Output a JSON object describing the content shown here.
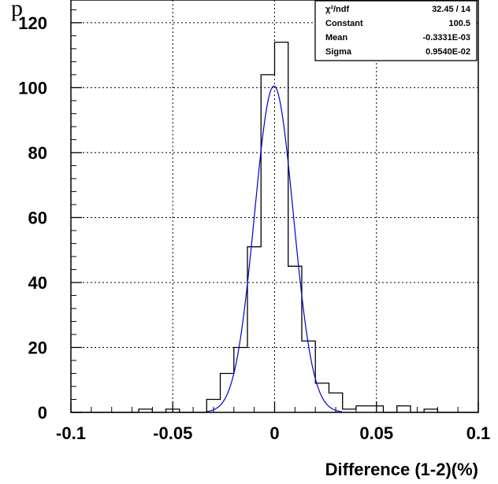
{
  "page_title_glyph": "p",
  "chart_data": {
    "type": "bar",
    "xlabel": "Difference (1-2)(%)",
    "ylabel": "",
    "xlim": [
      -0.1,
      0.1
    ],
    "ylim": [
      0,
      127
    ],
    "grid": true,
    "x_ticks": [
      {
        "value": -0.1,
        "label": "-0.1"
      },
      {
        "value": -0.05,
        "label": "-0.05"
      },
      {
        "value": 0,
        "label": "0"
      },
      {
        "value": 0.05,
        "label": "0.05"
      },
      {
        "value": 0.1,
        "label": "0.1"
      }
    ],
    "y_ticks": [
      {
        "value": 0,
        "label": "0"
      },
      {
        "value": 20,
        "label": "20"
      },
      {
        "value": 40,
        "label": "40"
      },
      {
        "value": 60,
        "label": "60"
      },
      {
        "value": 80,
        "label": "80"
      },
      {
        "value": 100,
        "label": "100"
      },
      {
        "value": 120,
        "label": "120"
      }
    ],
    "histogram": {
      "bin_width": 0.00667,
      "bins": [
        {
          "x_low": -0.0667,
          "count": 1
        },
        {
          "x_low": -0.0533,
          "count": 1
        },
        {
          "x_low": -0.0333,
          "count": 4
        },
        {
          "x_low": -0.0267,
          "count": 12
        },
        {
          "x_low": -0.02,
          "count": 20
        },
        {
          "x_low": -0.0133,
          "count": 51
        },
        {
          "x_low": -0.0067,
          "count": 104
        },
        {
          "x_low": 0.0,
          "count": 114
        },
        {
          "x_low": 0.0067,
          "count": 45
        },
        {
          "x_low": 0.0133,
          "count": 22
        },
        {
          "x_low": 0.02,
          "count": 9
        },
        {
          "x_low": 0.0267,
          "count": 6
        },
        {
          "x_low": 0.0333,
          "count": 1
        },
        {
          "x_low": 0.04,
          "count": 2
        },
        {
          "x_low": 0.0467,
          "count": 2
        },
        {
          "x_low": 0.06,
          "count": 2
        },
        {
          "x_low": 0.0733,
          "count": 1
        }
      ],
      "color": "#000000"
    },
    "fit": {
      "function": "gaus",
      "constant": 100.5,
      "mean": -0.0003331,
      "sigma": 0.00954,
      "color": "#0000cc"
    },
    "stats_box": {
      "rows": [
        {
          "label": "χ²/ndf",
          "value": "32.45   /   14"
        },
        {
          "label": "Constant",
          "value": "100.5"
        },
        {
          "label": "Mean",
          "value": "-0.3331E-03"
        },
        {
          "label": "Sigma",
          "value": "0.9540E-02"
        }
      ]
    }
  }
}
